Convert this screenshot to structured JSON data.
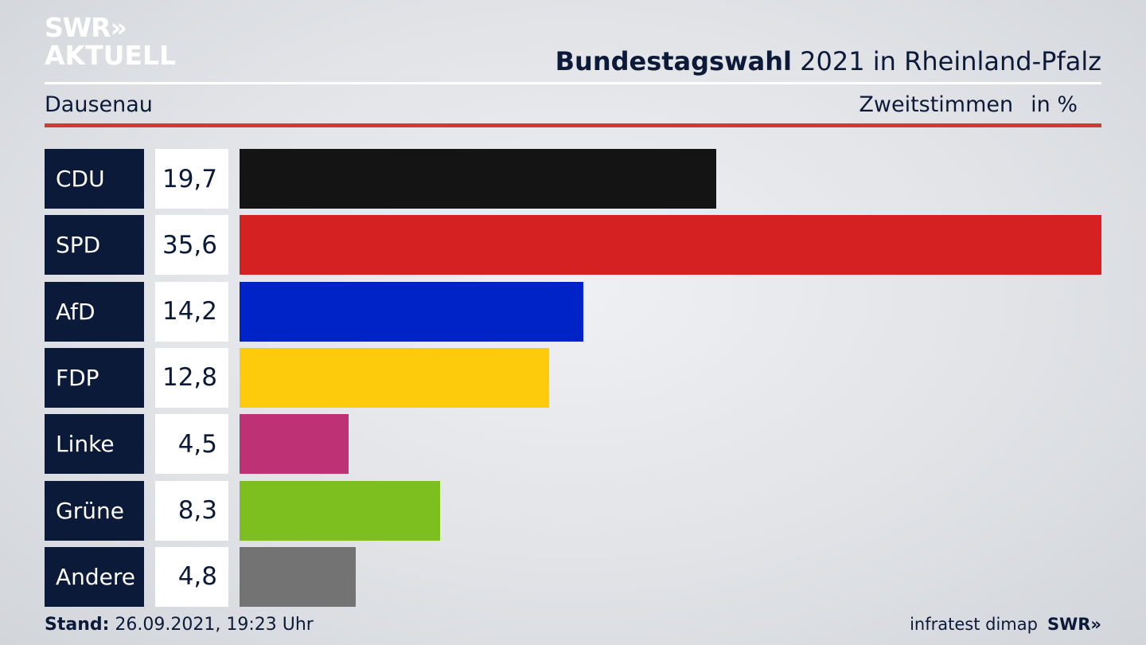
{
  "header": {
    "logo_line1": "SWR»",
    "logo_line2": "AKTUELL",
    "title_bold": "Bundestagswahl",
    "title_rest": " 2021 in Rheinland-Pfalz",
    "place": "Dausenau",
    "vote_type": "Zweitstimmen",
    "unit": "in %"
  },
  "footer": {
    "stand_label": "Stand:",
    "stand_value": " 26.09.2021, 19:23 Uhr",
    "source": "infratest dimap",
    "swr_logo": "SWR»"
  },
  "chart_data": {
    "type": "bar",
    "orientation": "horizontal",
    "title": "Bundestagswahl 2021 in Rheinland-Pfalz",
    "categories": [
      "CDU",
      "SPD",
      "AfD",
      "FDP",
      "Linke",
      "Grüne",
      "Andere"
    ],
    "values": [
      19.7,
      35.6,
      14.2,
      12.8,
      4.5,
      8.3,
      4.8
    ],
    "value_labels": [
      "19,7",
      "35,6",
      "14,2",
      "12,8",
      "4,5",
      "8,3",
      "4,8"
    ],
    "colors": [
      "#141414",
      "#d52121",
      "#0023c8",
      "#fdcb0c",
      "#bf3175",
      "#7cbf1e",
      "#737373"
    ],
    "xlim": [
      0,
      35.6
    ],
    "grid": false,
    "legend": "none"
  }
}
